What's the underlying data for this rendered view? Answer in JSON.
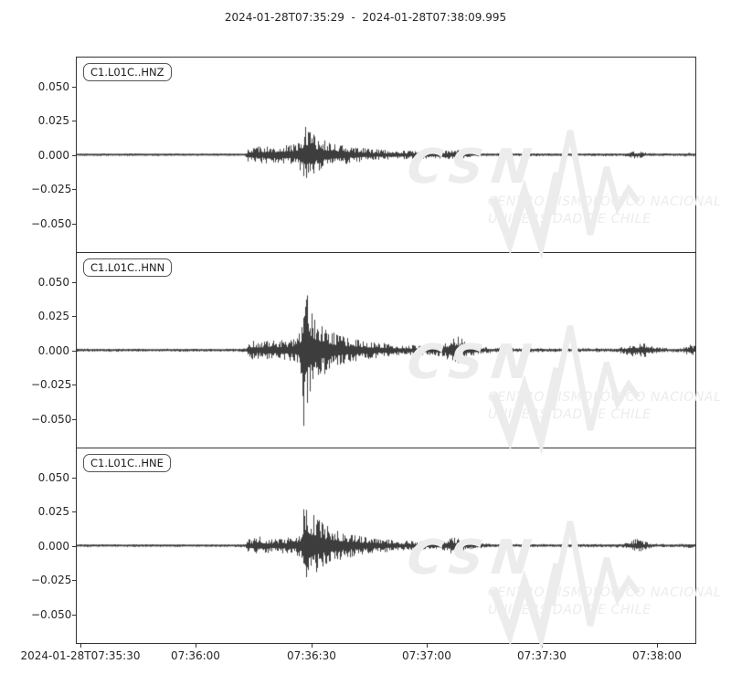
{
  "colors": {
    "trace": "#3d3d3d",
    "spine": "#333333",
    "tick_text": "#262626",
    "watermark": "#ececec",
    "background": "#ffffff"
  },
  "watermark": {
    "logo_text": "CSN",
    "line1": "CENTRO SISMOLÓGICO NACIONAL",
    "line2": "UNIVERSIDAD DE CHILE"
  },
  "chart_data": {
    "type": "line",
    "subtype": "seismogram",
    "title": "2024-01-28T07:35:29  -  2024-01-28T07:38:09.995",
    "start_time": "2024-01-28T07:35:29",
    "end_time": "2024-01-28T07:38:09.995",
    "duration_seconds": 160.995,
    "grid": false,
    "legend_position": "none",
    "ylim": [
      -0.0717,
      0.0717
    ],
    "yticks": {
      "labels": [
        "0.050",
        "0.025",
        "0.000",
        "−0.025",
        "−0.050"
      ],
      "values": [
        0.05,
        0.025,
        0,
        -0.025,
        -0.05
      ]
    },
    "xticks": [
      {
        "seconds": 1,
        "label": "2024-01-28T07:35:30"
      },
      {
        "seconds": 31,
        "label": "07:36:00"
      },
      {
        "seconds": 61,
        "label": "07:36:30"
      },
      {
        "seconds": 91,
        "label": "07:37:00"
      },
      {
        "seconds": 121,
        "label": "07:37:30"
      },
      {
        "seconds": 151,
        "label": "07:38:00"
      }
    ],
    "series": [
      {
        "label": "C1.L01C..HNZ",
        "network": "C1",
        "station": "L01C",
        "channel": "HNZ",
        "peak_amplitude": 0.022,
        "envelope": [
          [
            0,
            0.0009
          ],
          [
            40,
            0.0009
          ],
          [
            44,
            0.001
          ],
          [
            44.6,
            0.005
          ],
          [
            46,
            0.0065
          ],
          [
            48,
            0.006
          ],
          [
            50,
            0.007
          ],
          [
            52,
            0.0065
          ],
          [
            54,
            0.007
          ],
          [
            56,
            0.008
          ],
          [
            57.5,
            0.0095
          ],
          [
            58.6,
            0.014
          ],
          [
            59.3,
            0.022
          ],
          [
            60.2,
            0.019
          ],
          [
            61.2,
            0.016
          ],
          [
            62.5,
            0.013
          ],
          [
            64,
            0.011
          ],
          [
            66,
            0.0095
          ],
          [
            68,
            0.008
          ],
          [
            71,
            0.0065
          ],
          [
            75,
            0.005
          ],
          [
            80,
            0.0038
          ],
          [
            86,
            0.0032
          ],
          [
            92,
            0.003
          ],
          [
            96,
            0.0032
          ],
          [
            98.5,
            0.0042
          ],
          [
            100.5,
            0.0032
          ],
          [
            103,
            0.0016
          ],
          [
            108,
            0.0012
          ],
          [
            115,
            0.001
          ],
          [
            125,
            0.001
          ],
          [
            135,
            0.001
          ],
          [
            142,
            0.0011
          ],
          [
            144.5,
            0.0028
          ],
          [
            146.5,
            0.0026
          ],
          [
            148.5,
            0.0014
          ],
          [
            152,
            0.001
          ],
          [
            157,
            0.001
          ],
          [
            159.6,
            0.0016
          ],
          [
            161,
            0.0012
          ]
        ]
      },
      {
        "label": "C1.L01C..HNN",
        "network": "C1",
        "station": "L01C",
        "channel": "HNN",
        "peak_amplitude": 0.066,
        "envelope": [
          [
            0,
            0.0011
          ],
          [
            40,
            0.0011
          ],
          [
            44,
            0.0013
          ],
          [
            44.6,
            0.0055
          ],
          [
            46,
            0.007
          ],
          [
            48,
            0.0065
          ],
          [
            50,
            0.0075
          ],
          [
            52,
            0.007
          ],
          [
            54,
            0.0075
          ],
          [
            56,
            0.008
          ],
          [
            57.5,
            0.01
          ],
          [
            58.6,
            0.02
          ],
          [
            59.2,
            0.066
          ],
          [
            59.9,
            0.048
          ],
          [
            60.6,
            0.034
          ],
          [
            61.6,
            0.027
          ],
          [
            62.6,
            0.023
          ],
          [
            64,
            0.019
          ],
          [
            65.5,
            0.016
          ],
          [
            67,
            0.013
          ],
          [
            69,
            0.011
          ],
          [
            71,
            0.009
          ],
          [
            74,
            0.0075
          ],
          [
            78,
            0.006
          ],
          [
            82,
            0.0048
          ],
          [
            86,
            0.004
          ],
          [
            90,
            0.0035
          ],
          [
            94,
            0.0042
          ],
          [
            96,
            0.006
          ],
          [
            97.5,
            0.009
          ],
          [
            99,
            0.0115
          ],
          [
            100.5,
            0.008
          ],
          [
            102,
            0.005
          ],
          [
            104.5,
            0.003
          ],
          [
            108,
            0.002
          ],
          [
            114,
            0.0016
          ],
          [
            122,
            0.0014
          ],
          [
            132,
            0.0014
          ],
          [
            140,
            0.0015
          ],
          [
            143,
            0.0032
          ],
          [
            144.6,
            0.0058
          ],
          [
            146,
            0.0045
          ],
          [
            147.6,
            0.006
          ],
          [
            149.2,
            0.004
          ],
          [
            151,
            0.0022
          ],
          [
            154,
            0.0015
          ],
          [
            157.5,
            0.0014
          ],
          [
            159.7,
            0.0048
          ],
          [
            160.5,
            0.0042
          ],
          [
            161,
            0.003
          ]
        ]
      },
      {
        "label": "C1.L01C..HNE",
        "network": "C1",
        "station": "L01C",
        "channel": "HNE",
        "peak_amplitude": 0.041,
        "envelope": [
          [
            0,
            0.001
          ],
          [
            40,
            0.001
          ],
          [
            43.8,
            0.0012
          ],
          [
            44.6,
            0.0045
          ],
          [
            46,
            0.006
          ],
          [
            47.5,
            0.007
          ],
          [
            49,
            0.0055
          ],
          [
            51,
            0.005
          ],
          [
            53,
            0.0055
          ],
          [
            55,
            0.006
          ],
          [
            56.8,
            0.0065
          ],
          [
            58.2,
            0.009
          ],
          [
            58.8,
            0.016
          ],
          [
            59.3,
            0.041
          ],
          [
            60,
            0.034
          ],
          [
            60.9,
            0.027
          ],
          [
            62,
            0.022
          ],
          [
            63.5,
            0.018
          ],
          [
            65,
            0.0155
          ],
          [
            67,
            0.0125
          ],
          [
            69,
            0.0105
          ],
          [
            71.5,
            0.0085
          ],
          [
            74,
            0.007
          ],
          [
            78,
            0.0055
          ],
          [
            82,
            0.0045
          ],
          [
            86,
            0.0036
          ],
          [
            90,
            0.003
          ],
          [
            94,
            0.0032
          ],
          [
            96,
            0.0042
          ],
          [
            97.8,
            0.007
          ],
          [
            99.3,
            0.0055
          ],
          [
            101,
            0.0035
          ],
          [
            103.5,
            0.002
          ],
          [
            108,
            0.0015
          ],
          [
            115,
            0.0013
          ],
          [
            125,
            0.0012
          ],
          [
            135,
            0.0012
          ],
          [
            142,
            0.0013
          ],
          [
            143.8,
            0.0028
          ],
          [
            145.6,
            0.0052
          ],
          [
            147.2,
            0.0038
          ],
          [
            149,
            0.002
          ],
          [
            151.5,
            0.0014
          ],
          [
            156,
            0.0011
          ],
          [
            159.6,
            0.0018
          ],
          [
            161,
            0.0012
          ]
        ]
      }
    ]
  }
}
